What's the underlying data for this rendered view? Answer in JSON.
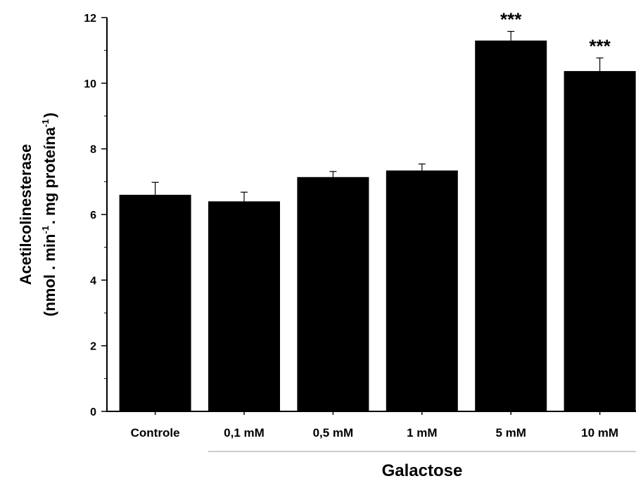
{
  "chart_data": {
    "type": "bar",
    "categories": [
      "Controle",
      "0,1 mM",
      "0,5 mM",
      "1 mM",
      "5 mM",
      "10 mM"
    ],
    "values": [
      6.6,
      6.4,
      7.14,
      7.34,
      11.3,
      10.37
    ],
    "errors": [
      0.38,
      0.28,
      0.17,
      0.2,
      0.28,
      0.4
    ],
    "significance": [
      "",
      "",
      "",
      "",
      "***",
      "***"
    ],
    "group_label": "Galactose",
    "ylabel_line1": "Acetilcolinesterase",
    "ylabel_line2_parts": [
      "(nmol . min",
      "-1",
      ". mg proteína",
      "-1",
      ")"
    ],
    "ylim": [
      0,
      12
    ],
    "yticks": [
      0,
      2,
      4,
      6,
      8,
      10,
      12
    ],
    "bar_color": "#000000",
    "grid": false
  }
}
